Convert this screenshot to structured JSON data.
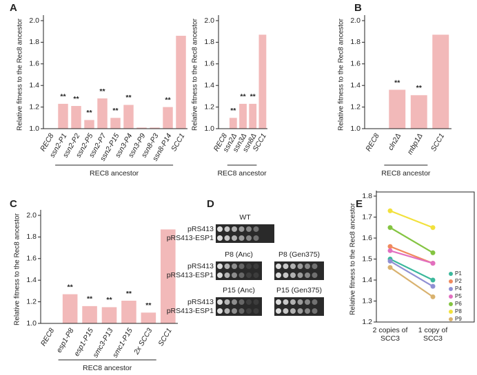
{
  "chart_data": [
    {
      "type": "bar",
      "panel": "A",
      "y_label": "Relative fitness to the Rec8 ancestor",
      "categories": [
        "REC8",
        "ssn2-P1",
        "ssn2-P2",
        "ssn2-P5",
        "ssn2-P7",
        "ssn2-P15",
        "ssn3-P4",
        "ssn3-P9",
        "ssn8-P3",
        "ssn8-P14",
        "SCC1"
      ],
      "values": [
        1.0,
        1.23,
        1.21,
        1.08,
        1.28,
        1.1,
        1.22,
        1.01,
        1.01,
        1.2,
        1.86
      ],
      "significance": [
        null,
        "**",
        "**",
        "**",
        "**",
        "**",
        "**",
        null,
        null,
        "**",
        null
      ],
      "group_label": "REC8 ancestor",
      "color": "#f2b9b9",
      "ylim": [
        1.0,
        2.0
      ],
      "yticks": [
        {
          "value": 1.0,
          "label": "1.0"
        },
        1.2,
        1.4,
        1.6,
        1.8,
        {
          "value": 2.0,
          "label": "2.0"
        }
      ]
    },
    {
      "type": "bar",
      "y_label": "Relative fitness to the Rec8 ancestor",
      "categories": [
        "REC8",
        "ssn2Δ",
        "ssn3Δ",
        "ssn8Δ",
        "SCC1"
      ],
      "values": [
        1.0,
        1.1,
        1.23,
        1.23,
        1.87
      ],
      "significance": [
        null,
        "**",
        "**",
        "**",
        null
      ],
      "group_label": "REC8 ancestor",
      "color": "#f2b9b9",
      "ylim": [
        1.0,
        2.0
      ],
      "yticks": [
        {
          "value": 1.0,
          "label": "1.0"
        },
        1.2,
        1.4,
        1.6,
        1.8,
        {
          "value": 2.0,
          "label": "2.0"
        }
      ]
    },
    {
      "type": "bar",
      "panel": "B",
      "y_label": "Relative fitness to the Rec8 ancestor",
      "categories": [
        "REC8",
        "cln2Δ",
        "mbp1Δ",
        "SCC1"
      ],
      "values": [
        1.0,
        1.36,
        1.31,
        1.87
      ],
      "significance": [
        null,
        "**",
        "**",
        null
      ],
      "group_label": "REC8 ancestor",
      "color": "#f2b9b9",
      "ylim": [
        1.0,
        2.0
      ],
      "yticks": [
        {
          "value": 1.0,
          "label": "1.0"
        },
        1.2,
        1.4,
        1.6,
        1.8,
        {
          "value": 2.0,
          "label": "2.0"
        }
      ]
    },
    {
      "type": "bar",
      "panel": "C",
      "y_label": "Relative fitness to the Rec8 ancestor",
      "categories": [
        "REC8",
        "esp1-P8",
        "esp1-P15",
        "smc3-P13",
        "smc1-P15",
        "2x SCC3",
        "SCC1"
      ],
      "values": [
        1.0,
        1.27,
        1.16,
        1.15,
        1.21,
        1.1,
        1.87
      ],
      "significance": [
        null,
        "**",
        "**",
        "**",
        "**",
        "**",
        null
      ],
      "group_label": "REC8 ancestor",
      "color": "#f2b9b9",
      "ylim": [
        1.0,
        2.0
      ],
      "yticks": [
        {
          "value": 1.0,
          "label": "1.0"
        },
        1.2,
        1.4,
        1.6,
        1.8,
        {
          "value": 2.0,
          "label": "2.0"
        }
      ]
    },
    {
      "type": "line",
      "panel": "E",
      "y_label": "Relative fitness to the Rec8 ancestor",
      "categories": [
        "2 copies of SCC3",
        "1 copy of SCC3"
      ],
      "series": [
        {
          "name": "P1",
          "color": "#3bb89c",
          "values": [
            1.5,
            1.4
          ]
        },
        {
          "name": "P2",
          "color": "#f08a5d",
          "values": [
            1.56,
            1.48
          ]
        },
        {
          "name": "P4",
          "color": "#8f8fd3",
          "values": [
            1.49,
            1.37
          ]
        },
        {
          "name": "P5",
          "color": "#e26fc0",
          "values": [
            1.54,
            1.48
          ]
        },
        {
          "name": "P6",
          "color": "#84c441",
          "values": [
            1.65,
            1.53
          ]
        },
        {
          "name": "P8",
          "color": "#f2e13c",
          "values": [
            1.73,
            1.65
          ]
        },
        {
          "name": "P9",
          "color": "#d9b26f",
          "values": [
            1.46,
            1.32
          ]
        }
      ],
      "ylim": [
        1.2,
        1.8
      ],
      "yticks": [
        1.2,
        1.3,
        1.4,
        1.5,
        1.6,
        1.7,
        1.8
      ]
    }
  ],
  "panel_d": {
    "panel": "D",
    "rows": [
      "pRS413",
      "pRS413-ESP1"
    ],
    "plates": [
      "WT",
      "P8 (Anc)",
      "P8 (Gen375)",
      "P15 (Anc)",
      "P15 (Gen375)"
    ]
  }
}
